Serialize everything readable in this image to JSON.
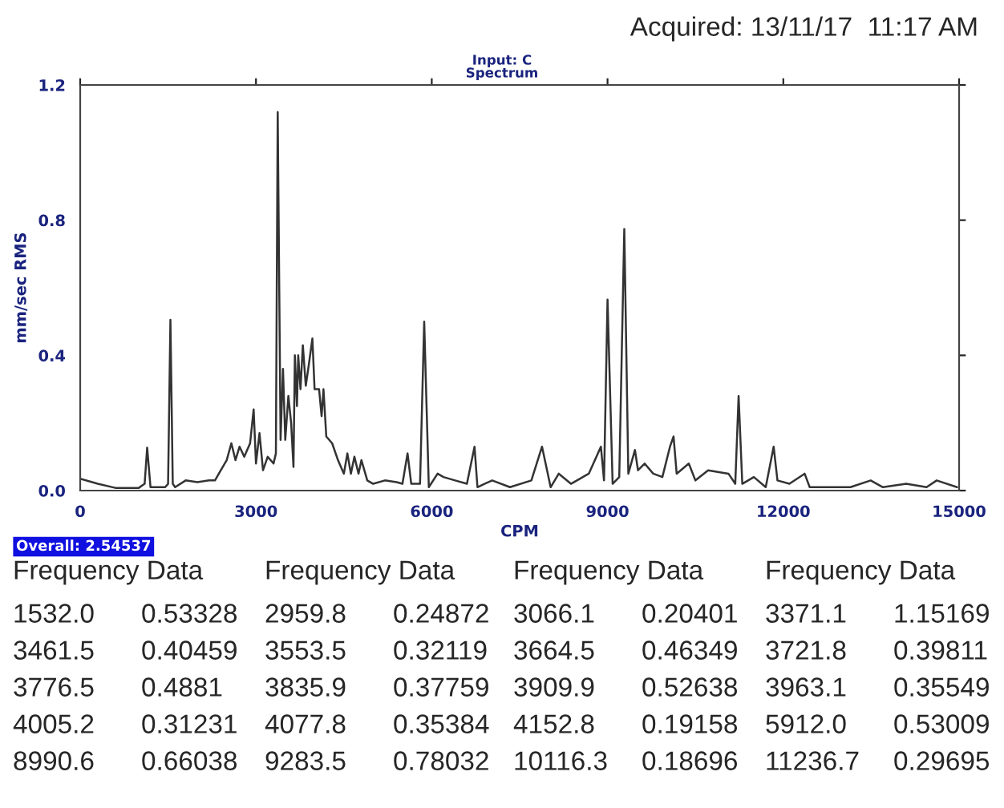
{
  "chart_data": {
    "type": "line",
    "title": "Input: C",
    "subtitle": "Spectrum",
    "xlabel": "CPM",
    "ylabel": "mm/sec RMS",
    "x": [
      0,
      300,
      600,
      1000,
      1100,
      1143,
      1200,
      1450,
      1500,
      1540,
      1580,
      1620,
      1800,
      2000,
      2200,
      2300,
      2400,
      2500,
      2580,
      2650,
      2720,
      2800,
      2900,
      2960,
      3000,
      3060,
      3120,
      3200,
      3300,
      3340,
      3371,
      3420,
      3461,
      3500,
      3553,
      3600,
      3640,
      3664,
      3700,
      3721,
      3760,
      3800,
      3850,
      3900,
      3963,
      4000,
      4077,
      4120,
      4152,
      4200,
      4300,
      4400,
      4500,
      4560,
      4620,
      4680,
      4750,
      4800,
      4900,
      5000,
      5200,
      5400,
      5500,
      5587,
      5650,
      5800,
      5871,
      5950,
      6100,
      6200,
      6400,
      6600,
      6730,
      6780,
      6900,
      7032,
      7335,
      7700,
      7882,
      8029,
      8168,
      8376,
      8680,
      8887,
      8940,
      9000,
      9087,
      9200,
      9286,
      9355,
      9468,
      9520,
      9633,
      9780,
      9936,
      10066,
      10127,
      10180,
      10387,
      10500,
      10717,
      11064,
      11180,
      11237,
      11300,
      11497,
      11700,
      11835,
      11900,
      12104,
      12364,
      12450,
      13145,
      13491,
      13700,
      14098,
      14445,
      14618,
      14965
    ],
    "series": [
      {
        "color": "#333333",
        "values": [
          0.035,
          0.02,
          0.008,
          0.008,
          0.02,
          0.127,
          0.01,
          0.01,
          0.02,
          0.505,
          0.02,
          0.01,
          0.03,
          0.025,
          0.03,
          0.03,
          0.06,
          0.09,
          0.14,
          0.09,
          0.13,
          0.1,
          0.14,
          0.24,
          0.08,
          0.17,
          0.06,
          0.1,
          0.08,
          0.11,
          1.12,
          0.15,
          0.36,
          0.15,
          0.28,
          0.2,
          0.07,
          0.4,
          0.25,
          0.4,
          0.3,
          0.43,
          0.31,
          0.37,
          0.45,
          0.3,
          0.3,
          0.22,
          0.3,
          0.16,
          0.14,
          0.09,
          0.05,
          0.11,
          0.05,
          0.1,
          0.05,
          0.09,
          0.03,
          0.02,
          0.03,
          0.025,
          0.02,
          0.11,
          0.02,
          0.02,
          0.5,
          0.01,
          0.05,
          0.04,
          0.03,
          0.02,
          0.13,
          0.01,
          0.02,
          0.03,
          0.01,
          0.03,
          0.13,
          0.01,
          0.05,
          0.02,
          0.05,
          0.13,
          0.03,
          0.565,
          0.02,
          0.04,
          0.774,
          0.05,
          0.12,
          0.06,
          0.08,
          0.05,
          0.04,
          0.13,
          0.16,
          0.05,
          0.08,
          0.03,
          0.06,
          0.05,
          0.02,
          0.28,
          0.02,
          0.04,
          0.01,
          0.13,
          0.03,
          0.02,
          0.05,
          0.01,
          0.01,
          0.03,
          0.01,
          0.02,
          0.01,
          0.03,
          0.01
        ]
      }
    ],
    "xlim": [
      0,
      15000
    ],
    "xticks": [
      0,
      3000,
      6000,
      9000,
      12000,
      15000
    ],
    "ylim": [
      0,
      1.2
    ],
    "yticks": [
      {
        "value": 0,
        "label": "0.0"
      },
      0.4,
      0.8,
      1.2
    ],
    "grid": false,
    "legend": false,
    "annotations": [
      "Acquired: 13/11/17  11:17 AM",
      "Overall: 2.54537",
      "Frequency Data",
      "Frequency Data",
      "Frequency Data",
      "Frequency Data",
      "1532.0",
      "0.53328",
      "2959.8",
      "0.24872",
      "3066.1",
      "0.20401",
      "3371.1",
      "1.15169",
      "3461.5",
      "0.40459",
      "3553.5",
      "0.32119",
      "3664.5",
      "0.46349",
      "3721.8",
      "0.39811",
      "3776.5",
      "0.4881",
      "3835.9",
      "0.37759",
      "3909.9",
      "0.52638",
      "3963.1",
      "0.35549",
      "4005.2",
      "0.31231",
      "4077.8",
      "0.35384",
      "4152.8",
      "0.19158",
      "5912.0",
      "0.53009",
      "8990.6",
      "0.66038",
      "9283.5",
      "0.78032",
      "10116.3",
      "0.18696",
      "11236.7",
      "0.29695"
    ]
  }
}
